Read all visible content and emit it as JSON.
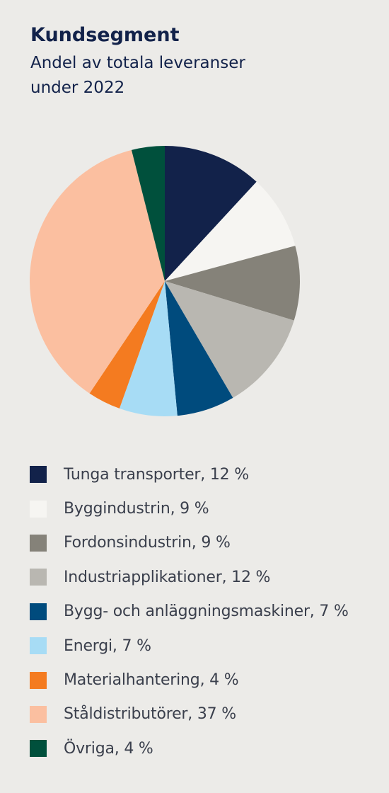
{
  "header": {
    "title": "Kundsegment",
    "subtitle_line1": "Andel av totala leveranser",
    "subtitle_line2": "under 2022"
  },
  "chart_data": {
    "type": "pie",
    "title": "Kundsegment",
    "subtitle": "Andel av totala leveranser under 2022",
    "unit": "%",
    "start": "12 o'clock",
    "direction": "clockwise",
    "legend_position": "bottom",
    "slices": [
      {
        "name": "Tunga transporter",
        "value": 12,
        "color": "#12224a",
        "label": "Tunga transporter, 12 %"
      },
      {
        "name": "Byggindustrin",
        "value": 9,
        "color": "#f6f5f2",
        "label": "Byggindustrin, 9 %"
      },
      {
        "name": "Fordonsindustrin",
        "value": 9,
        "color": "#858279",
        "label": "Fordonsindustrin, 9 %"
      },
      {
        "name": "Industriapplikationer",
        "value": 12,
        "color": "#b9b7b1",
        "label": "Industriapplikationer, 12 %"
      },
      {
        "name": "Bygg- och anläggningsmaskiner",
        "value": 7,
        "color": "#004b7d",
        "label": "Bygg- och anläggningsmaskiner, 7 %"
      },
      {
        "name": "Energi",
        "value": 7,
        "color": "#a7dcf5",
        "label": "Energi, 7 %"
      },
      {
        "name": "Materialhantering",
        "value": 4,
        "color": "#f47b20",
        "label": "Materialhantering, 4 %"
      },
      {
        "name": "Ståldistributörer",
        "value": 37,
        "color": "#fbbfa0",
        "label": "Ståldistributörer, 37 %"
      },
      {
        "name": "Övriga",
        "value": 4,
        "color": "#00503c",
        "label": "Övriga, 4 %"
      }
    ]
  }
}
